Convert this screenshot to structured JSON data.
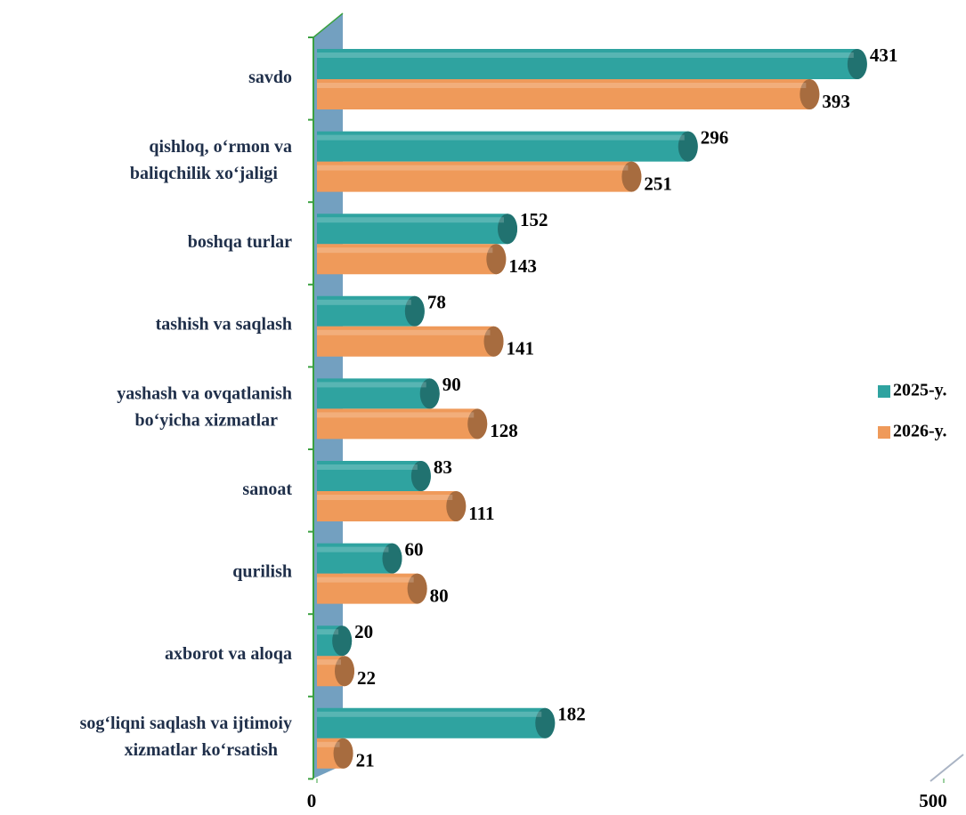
{
  "chart_data": {
    "type": "bar",
    "orientation": "horizontal",
    "categories": [
      "savdo",
      "qishloq, o‘rmon va\nbaliqchilik xo‘jaligi",
      "boshqa turlar",
      "tashish va saqlash",
      "yashash va ovqatlanish\nbo‘yicha xizmatlar",
      "sanoat",
      "qurilish",
      "axborot va aloqa",
      "sog‘liqni saqlash va ijtimoiy\nxizmatlar ko‘rsatish"
    ],
    "series": [
      {
        "name": "2025-y.",
        "color": "#2fa3a0",
        "values": [
          431,
          296,
          152,
          78,
          90,
          83,
          60,
          20,
          182
        ]
      },
      {
        "name": "2026-y.",
        "color": "#ef9a5a",
        "values": [
          393,
          251,
          143,
          141,
          128,
          111,
          80,
          22,
          21
        ]
      }
    ],
    "xlim": [
      0,
      500
    ],
    "xticks": [
      0,
      500
    ],
    "legend": "right"
  }
}
